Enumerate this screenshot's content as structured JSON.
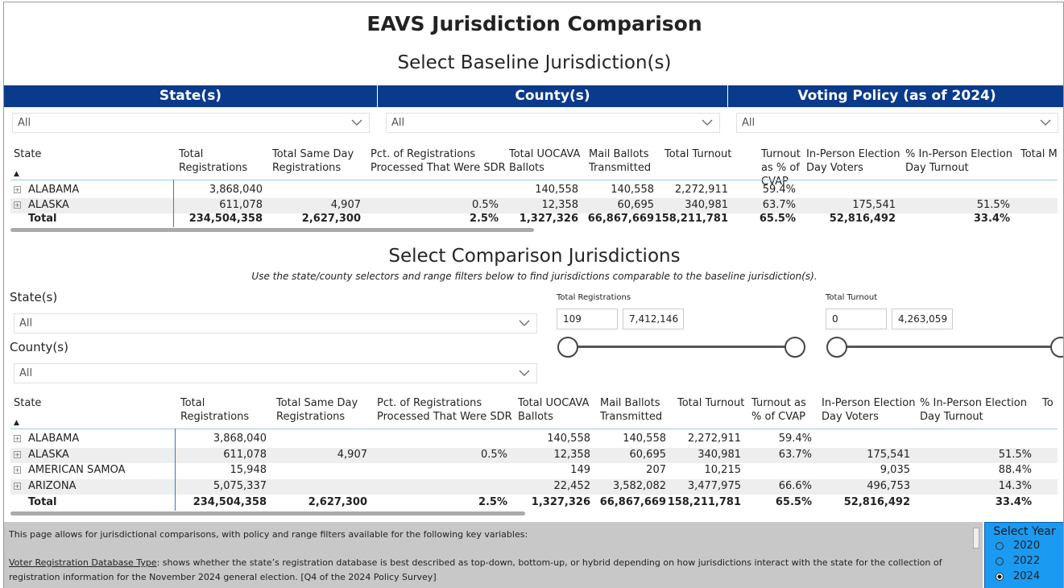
{
  "header": {
    "title": "EAVS Jurisdiction Comparison",
    "baseline_title": "Select Baseline Jurisdiction(s)"
  },
  "baseline_filters": [
    {
      "label": "State(s)",
      "value": "All"
    },
    {
      "label": "County(s)",
      "value": "All"
    },
    {
      "label": "Voting Policy (as of 2024)",
      "value": "All"
    }
  ],
  "baseline_table": {
    "columns": [
      "State",
      "Total Registrations",
      "Total Same Day Registrations",
      "Pct. of Registrations Processed That Were SDR",
      "Total UOCAVA Ballots",
      "Mail Ballots Transmitted",
      "Total Turnout",
      "Turnout as % of CVAP",
      "In-Person Election Day Voters",
      "% In-Person Election Day Turnout",
      "Total M"
    ],
    "rows": [
      [
        "ALABAMA",
        "3,868,040",
        null,
        null,
        "140,558",
        "140,558",
        "2,272,911",
        "59.4%",
        null,
        null
      ],
      [
        "ALASKA",
        "611,078",
        "4,907",
        "0.5%",
        "12,358",
        "60,695",
        "340,981",
        "63.7%",
        "175,541",
        "51.5%"
      ]
    ],
    "total": [
      "Total",
      "234,504,358",
      "2,627,300",
      "2.5%",
      "1,327,326",
      "66,867,669",
      "158,211,781",
      "65.5%",
      "52,816,492",
      "33.4%"
    ]
  },
  "comparison": {
    "title": "Select Comparison Jurisdictions",
    "subtitle": "Use the state/county selectors and range filters below to find jurisdictions comparable to the baseline jurisdiction(s).",
    "state_label": "State(s)",
    "state_value": "All",
    "county_label": "County(s)",
    "county_value": "All",
    "sliders": [
      {
        "label": "Total Registrations",
        "min": "109",
        "max": "7,412,146"
      },
      {
        "label": "Total Turnout",
        "min": "0",
        "max": "4,263,059"
      }
    ]
  },
  "comparison_table": {
    "columns": [
      "State",
      "Total Registrations",
      "Total Same Day Registrations",
      "Pct. of Registrations Processed That Were SDR",
      "Total UOCAVA Ballots",
      "Mail Ballots Transmitted",
      "Total Turnout",
      "Turnout as % of CVAP",
      "In-Person Election Day Voters",
      "% In-Person Election Day Turnout",
      "To"
    ],
    "rows": [
      [
        "ALABAMA",
        "3,868,040",
        null,
        null,
        "140,558",
        "140,558",
        "2,272,911",
        "59.4%",
        null,
        null
      ],
      [
        "ALASKA",
        "611,078",
        "4,907",
        "0.5%",
        "12,358",
        "60,695",
        "340,981",
        "63.7%",
        "175,541",
        "51.5%"
      ],
      [
        "AMERICAN SAMOA",
        "15,948",
        null,
        null,
        "149",
        "207",
        "10,215",
        null,
        "9,035",
        "88.4%"
      ],
      [
        "ARIZONA",
        "5,075,337",
        null,
        null,
        "22,452",
        "3,582,082",
        "3,477,975",
        "66.6%",
        "496,753",
        "14.3%"
      ]
    ],
    "total": [
      "Total",
      "234,504,358",
      "2,627,300",
      "2.5%",
      "1,327,326",
      "66,867,669",
      "158,211,781",
      "65.5%",
      "52,816,492",
      "33.4%"
    ]
  },
  "footer": {
    "intro": "This page allows for jurisdictional comparisons, with policy and range filters available for the following key variables:",
    "link": "Voter Registration Database Type",
    "text": ": shows whether the state’s registration database is best described as top-down, bottom-up, or hybrid depending on how jurisdictions interact with the state for the collection of registration information for the November 2024 general election. [Q4 of the 2024 Policy Survey]"
  },
  "year_selector": {
    "title": "Select Year",
    "options": [
      "2020",
      "2022",
      "2024"
    ],
    "selected": "2024"
  }
}
